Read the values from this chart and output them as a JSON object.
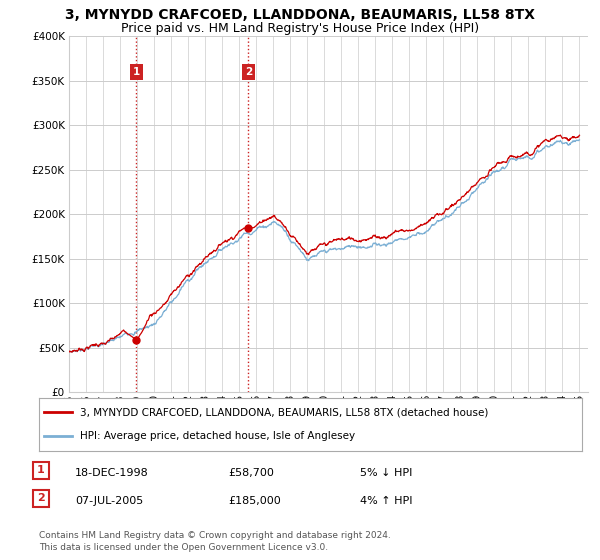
{
  "title": "3, MYNYDD CRAFCOED, LLANDDONA, BEAUMARIS, LL58 8TX",
  "subtitle": "Price paid vs. HM Land Registry's House Price Index (HPI)",
  "ylim": [
    0,
    400000
  ],
  "yticks": [
    0,
    50000,
    100000,
    150000,
    200000,
    250000,
    300000,
    350000,
    400000
  ],
  "sale1_year": 1998.96,
  "sale1_price": 58700,
  "sale1_label": "1",
  "sale1_text": "18-DEC-1998",
  "sale1_hpi": "5% ↓ HPI",
  "sale2_year": 2005.54,
  "sale2_price": 185000,
  "sale2_label": "2",
  "sale2_text": "07-JUL-2005",
  "sale2_hpi": "4% ↑ HPI",
  "legend_red": "3, MYNYDD CRAFCOED, LLANDDONA, BEAUMARIS, LL58 8TX (detached house)",
  "legend_blue": "HPI: Average price, detached house, Isle of Anglesey",
  "footer": "Contains HM Land Registry data © Crown copyright and database right 2024.\nThis data is licensed under the Open Government Licence v3.0.",
  "line_color_red": "#cc0000",
  "line_color_blue": "#7bafd4",
  "background_color": "#ffffff",
  "grid_color": "#cccccc",
  "box_color": "#cc2222",
  "vline_color": "#cc2222",
  "title_fontsize": 10,
  "subtitle_fontsize": 9,
  "tick_fontsize": 7.5,
  "legend_fontsize": 7.5,
  "footer_fontsize": 6.5,
  "xstart": 1995,
  "xend": 2025
}
